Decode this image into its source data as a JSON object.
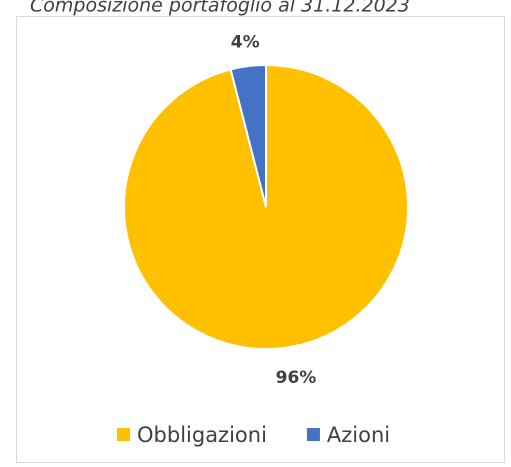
{
  "chart_data": {
    "type": "pie",
    "title": "Composizione portafoglio al 31.12.2023",
    "categories": [
      "Obbligazioni",
      "Azioni"
    ],
    "values": [
      96,
      4
    ],
    "value_labels": [
      "96%",
      "4%"
    ],
    "colors": [
      "#ffc000",
      "#4472c4"
    ],
    "legend": "bottom"
  }
}
